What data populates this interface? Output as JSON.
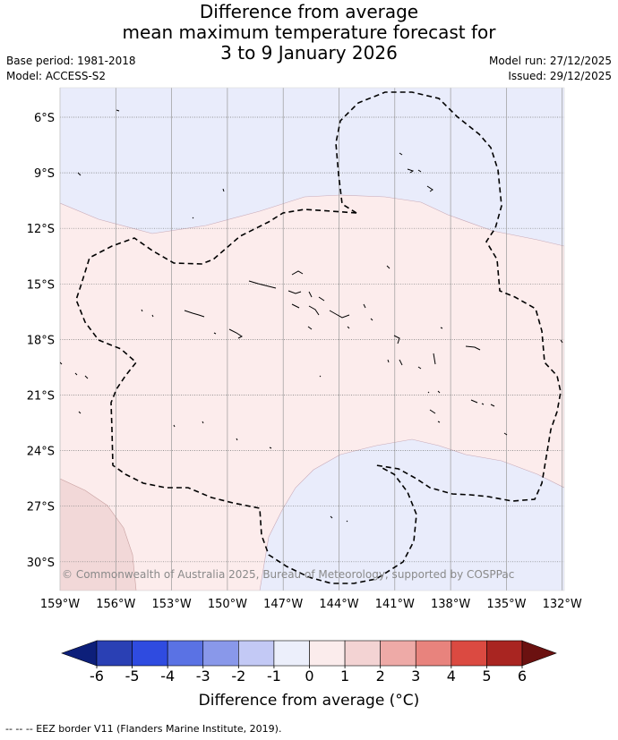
{
  "title": {
    "line1": "Difference from average",
    "line2": "mean maximum temperature forecast for",
    "line3": "3 to 9 January 2026"
  },
  "meta": {
    "base_period": "Base period: 1981-2018",
    "model": "Model: ACCESS-S2",
    "model_run": "Model run: 27/12/2025",
    "issued": "Issued: 29/12/2025"
  },
  "map": {
    "lat_labels": [
      "6°S",
      "9°S",
      "12°S",
      "15°S",
      "18°S",
      "21°S",
      "24°S",
      "27°S",
      "30°S"
    ],
    "lon_labels": [
      "159°W",
      "156°W",
      "153°W",
      "150°W",
      "147°W",
      "144°W",
      "141°W",
      "138°W",
      "135°W",
      "132°W"
    ],
    "copyright": "© Commonwealth of Australia 2025, Bureau of Meteorology, supported by COSPPac"
  },
  "colorbar": {
    "ticks": [
      "-6",
      "-5",
      "-4",
      "-3",
      "-2",
      "-1",
      "0",
      "1",
      "2",
      "3",
      "4",
      "5",
      "6"
    ],
    "colors": [
      "#0d1f7a",
      "#2a40b4",
      "#2f4be0",
      "#5a72e4",
      "#8998ea",
      "#c3c9f5",
      "#eceffb",
      "#fbecec",
      "#f3d3d3",
      "#eeaaa7",
      "#e8837d",
      "#db4a41",
      "#a92521",
      "#6b1110"
    ],
    "label": "Difference from average (°C)"
  },
  "source_note": "--  --  -- EEZ border V11 (Flanders Marine Institute, 2019)."
}
